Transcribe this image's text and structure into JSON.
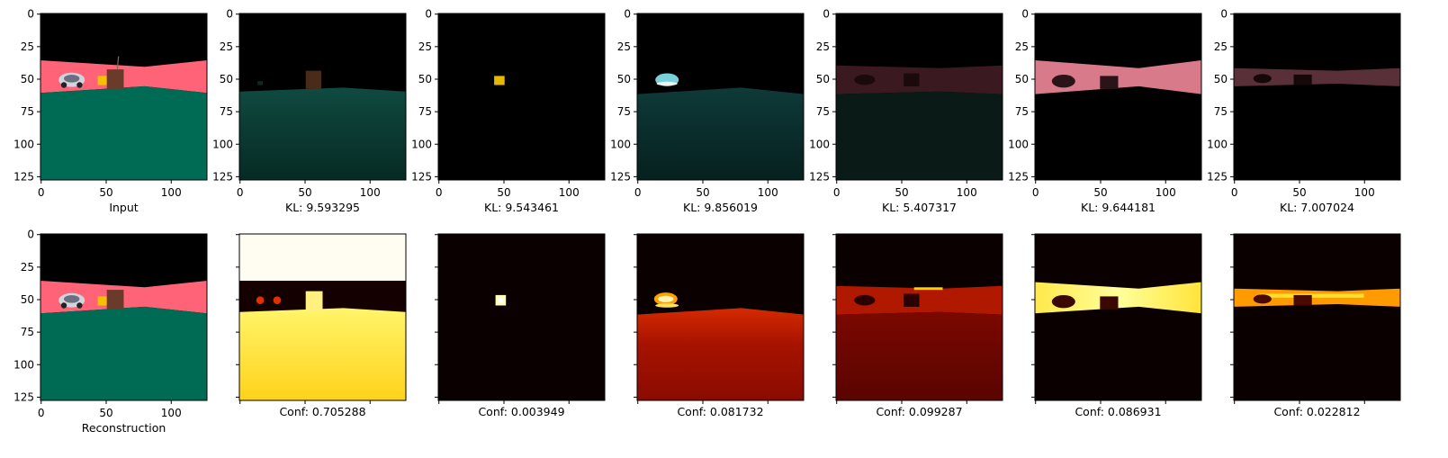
{
  "chart_data": {
    "type": "heatmap",
    "image_shape": [
      128,
      128
    ],
    "axis_ticks": [
      0,
      25,
      50,
      75,
      100,
      125
    ],
    "x_tick_labels": [
      "0",
      "50",
      "100"
    ],
    "y_tick_labels": [
      "0",
      "25",
      "50",
      "75",
      "100",
      "125"
    ],
    "rows": [
      {
        "row": "components",
        "panels": [
          {
            "label": "Input",
            "kind": "scene_input"
          },
          {
            "label": "KL: 9.593295",
            "kind": "comp_ground"
          },
          {
            "label": "KL: 9.543461",
            "kind": "comp_object"
          },
          {
            "label": "KL: 9.856019",
            "kind": "comp_car"
          },
          {
            "label": "KL: 5.407317",
            "kind": "comp_faint_band"
          },
          {
            "label": "KL: 9.644181",
            "kind": "comp_band"
          },
          {
            "label": "KL: 7.007024",
            "kind": "comp_dim_band"
          }
        ]
      },
      {
        "row": "masks",
        "panels": [
          {
            "label": "Reconstruction",
            "kind": "scene_recon"
          },
          {
            "label": "Conf: 0.705288",
            "kind": "mask_ground"
          },
          {
            "label": "Conf: 0.003949",
            "kind": "mask_object"
          },
          {
            "label": "Conf: 0.081732",
            "kind": "mask_car"
          },
          {
            "label": "Conf: 0.099287",
            "kind": "mask_faint_band"
          },
          {
            "label": "Conf: 0.086931",
            "kind": "mask_band"
          },
          {
            "label": "Conf: 0.022812",
            "kind": "mask_dim_band"
          }
        ]
      }
    ],
    "colors": {
      "sky": "#000000",
      "road": "#ff6378",
      "ground": "#006b54",
      "heat_low": "#0b0000",
      "heat_mid": "#c41e00",
      "heat_high": "#ffff40"
    }
  }
}
